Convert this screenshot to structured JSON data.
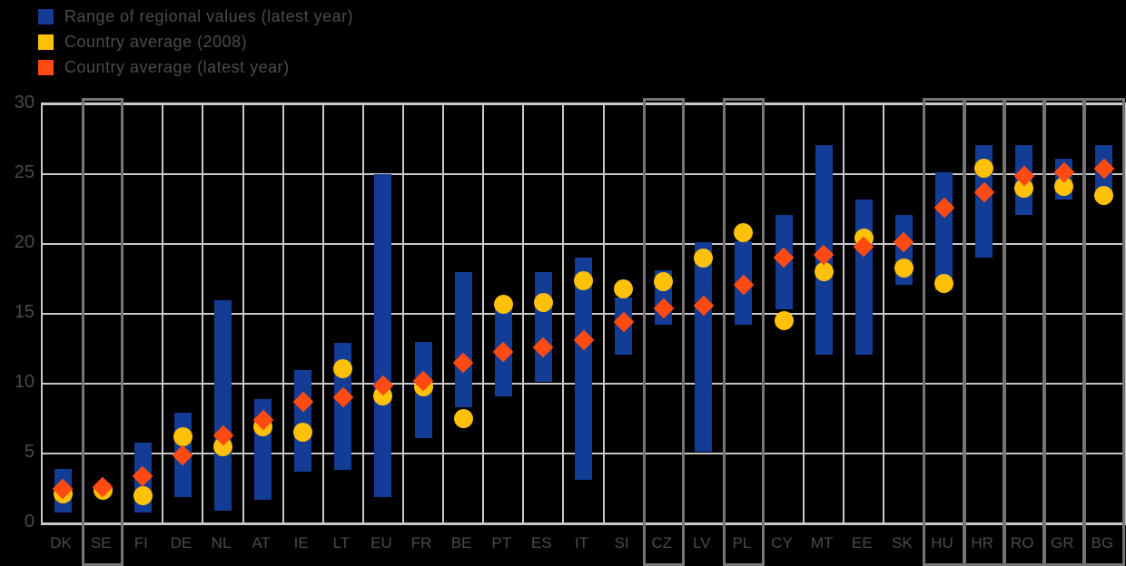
{
  "legend": {
    "items": [
      {
        "name": "range-series",
        "label": "Range of regional values (latest year)",
        "color": "#123c96",
        "shape": "square"
      },
      {
        "name": "avg-2008-series",
        "label": "Country average (2008)",
        "color": "#ffc008",
        "shape": "square"
      },
      {
        "name": "avg-latest-series",
        "label": "Country average (latest year)",
        "color": "#ff4a12",
        "shape": "square"
      }
    ]
  },
  "colors": {
    "background": "#000000",
    "bar": "#123c96",
    "circle_2008": "#ffc008",
    "diamond_latest": "#ff4a12",
    "gridline": "#c8c8c8",
    "country_box": "#757575",
    "faint_text": "#4a4a4a"
  },
  "chart_data": {
    "type": "bar",
    "subtype": "vertical-range-bars-with-markers",
    "title": "",
    "xlabel": "",
    "ylabel": "",
    "ylim": [
      0,
      30
    ],
    "yticks": [
      0,
      5,
      10,
      15,
      20,
      25,
      30
    ],
    "grid": true,
    "legend_position": "top-left",
    "marker_2008_shape": "circle",
    "marker_latest_shape": "diamond",
    "countries": [
      {
        "code": "DK",
        "range": [
          0.8,
          3.9
        ],
        "avg_2008": 2.1,
        "avg_latest": 2.5,
        "boxed": false
      },
      {
        "code": "SE",
        "range": null,
        "avg_2008": 2.4,
        "avg_latest": 2.6,
        "boxed": true
      },
      {
        "code": "FI",
        "range": [
          0.8,
          5.8
        ],
        "avg_2008": 2.0,
        "avg_latest": 3.4,
        "boxed": false
      },
      {
        "code": "DE",
        "range": [
          1.9,
          7.9
        ],
        "avg_2008": 6.2,
        "avg_latest": 4.9,
        "boxed": false
      },
      {
        "code": "NL",
        "range": [
          0.9,
          16.0
        ],
        "avg_2008": 5.5,
        "avg_latest": 6.3,
        "boxed": false
      },
      {
        "code": "AT",
        "range": [
          1.7,
          8.9
        ],
        "avg_2008": 6.9,
        "avg_latest": 7.4,
        "boxed": false
      },
      {
        "code": "IE",
        "range": [
          3.7,
          11.0
        ],
        "avg_2008": 6.5,
        "avg_latest": 8.7,
        "boxed": false
      },
      {
        "code": "LT",
        "range": [
          3.8,
          12.9
        ],
        "avg_2008": 11.1,
        "avg_latest": 9.0,
        "boxed": false
      },
      {
        "code": "EU",
        "range": [
          1.9,
          25.0
        ],
        "avg_2008": 9.1,
        "avg_latest": 9.9,
        "boxed": false
      },
      {
        "code": "FR",
        "range": [
          6.1,
          13.0
        ],
        "avg_2008": 9.8,
        "avg_latest": 10.2,
        "boxed": false
      },
      {
        "code": "BE",
        "range": [
          8.3,
          18.0
        ],
        "avg_2008": 7.5,
        "avg_latest": 11.5,
        "boxed": false
      },
      {
        "code": "PT",
        "range": [
          9.1,
          15.7
        ],
        "avg_2008": 15.7,
        "avg_latest": 12.3,
        "boxed": false
      },
      {
        "code": "ES",
        "range": [
          10.1,
          18.0
        ],
        "avg_2008": 15.8,
        "avg_latest": 12.6,
        "boxed": false
      },
      {
        "code": "IT",
        "range": [
          3.1,
          19.0
        ],
        "avg_2008": 17.4,
        "avg_latest": 13.1,
        "boxed": false
      },
      {
        "code": "SI",
        "range": [
          12.1,
          16.2
        ],
        "avg_2008": 16.8,
        "avg_latest": 14.4,
        "boxed": false
      },
      {
        "code": "CZ",
        "range": [
          14.2,
          18.1
        ],
        "avg_2008": 17.3,
        "avg_latest": 15.4,
        "boxed": true
      },
      {
        "code": "LV",
        "range": [
          5.1,
          20.1
        ],
        "avg_2008": 19.0,
        "avg_latest": 15.6,
        "boxed": false
      },
      {
        "code": "PL",
        "range": [
          14.2,
          20.2
        ],
        "avg_2008": 20.8,
        "avg_latest": 17.1,
        "boxed": true
      },
      {
        "code": "CY",
        "range": [
          15.3,
          22.1
        ],
        "avg_2008": 14.5,
        "avg_latest": 19.0,
        "boxed": false
      },
      {
        "code": "MT",
        "range": [
          12.1,
          27.1
        ],
        "avg_2008": 18.0,
        "avg_latest": 19.2,
        "boxed": false
      },
      {
        "code": "EE",
        "range": [
          12.1,
          23.2
        ],
        "avg_2008": 20.4,
        "avg_latest": 19.8,
        "boxed": false
      },
      {
        "code": "SK",
        "range": [
          17.1,
          22.1
        ],
        "avg_2008": 18.3,
        "avg_latest": 20.1,
        "boxed": false
      },
      {
        "code": "HU",
        "range": [
          16.7,
          25.1
        ],
        "avg_2008": 17.2,
        "avg_latest": 22.6,
        "boxed": true
      },
      {
        "code": "HR",
        "range": [
          19.0,
          27.1
        ],
        "avg_2008": 25.4,
        "avg_latest": 23.7,
        "boxed": true
      },
      {
        "code": "RO",
        "range": [
          22.1,
          27.1
        ],
        "avg_2008": 24.0,
        "avg_latest": 24.9,
        "boxed": true
      },
      {
        "code": "GR",
        "range": [
          23.2,
          26.1
        ],
        "avg_2008": 24.1,
        "avg_latest": 25.1,
        "boxed": true
      },
      {
        "code": "BG",
        "range": [
          23.4,
          27.1
        ],
        "avg_2008": 23.5,
        "avg_latest": 25.4,
        "boxed": true
      }
    ]
  }
}
